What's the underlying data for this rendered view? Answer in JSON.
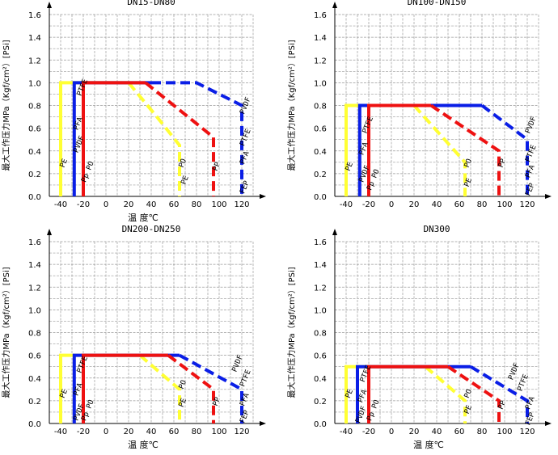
{
  "colors": {
    "PE": "#ffff33",
    "PVDF": "#0a1ee6",
    "PP": "#ee1111"
  },
  "chart_data": [
    {
      "type": "line",
      "title": "DN15-DN80",
      "xlabel": "温  度℃",
      "ylabel": "最大工作压力MPa（Kgf/cm²）[PSi]",
      "xlim": [
        -50,
        130
      ],
      "ylim": [
        0,
        1.6
      ],
      "xticks": [
        "-40",
        "-20",
        "0",
        "20",
        "40",
        "60",
        "80",
        "100",
        "120"
      ],
      "yticks": [
        "0.0",
        "0.2",
        "0.4",
        "0.6",
        "0.8",
        "1.0",
        "1.2",
        "1.4",
        "1.6"
      ],
      "series": [
        {
          "name": "PE",
          "color": "#ffff33",
          "solid": [
            [
              -40,
              0
            ],
            [
              -40,
              1.0
            ],
            [
              20,
              1.0
            ]
          ],
          "dashed": [
            [
              20,
              1.0
            ],
            [
              45,
              0.7
            ],
            [
              65,
              0.45
            ],
            [
              65,
              0
            ]
          ]
        },
        {
          "name": "PVDF",
          "color": "#0a1ee6",
          "solid": [
            [
              -28,
              0
            ],
            [
              -28,
              1.0
            ],
            [
              40,
              1.0
            ]
          ],
          "dashed": [
            [
              40,
              1.0
            ],
            [
              80,
              1.0
            ],
            [
              120,
              0.8
            ],
            [
              120,
              0
            ]
          ]
        },
        {
          "name": "PP",
          "color": "#ee1111",
          "solid": [
            [
              -20,
              0
            ],
            [
              -20,
              1.0
            ],
            [
              35,
              1.0
            ]
          ],
          "dashed": [
            [
              35,
              1.0
            ],
            [
              95,
              0.52
            ],
            [
              95,
              0
            ]
          ]
        }
      ],
      "annotations": [
        {
          "text": "PE",
          "x": -37,
          "y": 0.25
        },
        {
          "text": "PVDF",
          "x": -25,
          "y": 0.38
        },
        {
          "text": "PFA",
          "x": -25,
          "y": 0.58
        },
        {
          "text": "PTFE",
          "x": -22,
          "y": 0.88
        },
        {
          "text": "Pp PO",
          "x": -18,
          "y": 0.12
        },
        {
          "text": "PO",
          "x": 68,
          "y": 0.25
        },
        {
          "text": "PE",
          "x": 70,
          "y": 0.1
        },
        {
          "text": "PP",
          "x": 98,
          "y": 0.22
        },
        {
          "text": "PVDF",
          "x": 122,
          "y": 0.72
        },
        {
          "text": "PTFE",
          "x": 122,
          "y": 0.44
        },
        {
          "text": "PFA",
          "x": 122,
          "y": 0.28
        },
        {
          "text": "FEP",
          "x": 122,
          "y": 0.02
        }
      ]
    },
    {
      "type": "line",
      "title": "DN100-DN150",
      "xlabel": "",
      "ylabel": "最大工作压力MPa（Kgf/cm²）[PSi]",
      "xlim": [
        -50,
        130
      ],
      "ylim": [
        0,
        1.6
      ],
      "xticks": [
        "-40",
        "-20",
        "0",
        "20",
        "40",
        "60",
        "80",
        "100",
        "120"
      ],
      "yticks": [
        "0.0",
        "0.2",
        "0.4",
        "0.6",
        "0.8",
        "1.0",
        "1.2",
        "1.4",
        "1.6"
      ],
      "series": [
        {
          "name": "PE",
          "color": "#ffff33",
          "solid": [
            [
              -40,
              0
            ],
            [
              -40,
              0.8
            ],
            [
              20,
              0.8
            ]
          ],
          "dashed": [
            [
              20,
              0.8
            ],
            [
              65,
              0.3
            ],
            [
              65,
              0
            ]
          ]
        },
        {
          "name": "PVDF",
          "color": "#0a1ee6",
          "solid": [
            [
              -28,
              0
            ],
            [
              -28,
              0.8
            ],
            [
              80,
              0.8
            ]
          ],
          "dashed": [
            [
              80,
              0.8
            ],
            [
              120,
              0.5
            ],
            [
              120,
              0
            ]
          ]
        },
        {
          "name": "PP",
          "color": "#ee1111",
          "solid": [
            [
              -20,
              0
            ],
            [
              -20,
              0.8
            ],
            [
              35,
              0.8
            ]
          ],
          "dashed": [
            [
              35,
              0.8
            ],
            [
              95,
              0.4
            ],
            [
              95,
              0
            ]
          ]
        }
      ],
      "annotations": [
        {
          "text": "PE",
          "x": -37,
          "y": 0.22
        },
        {
          "text": "PVDF",
          "x": -25,
          "y": 0.12
        },
        {
          "text": "PFA",
          "x": -25,
          "y": 0.36
        },
        {
          "text": "PTFE",
          "x": -22,
          "y": 0.55
        },
        {
          "text": "Pp PO",
          "x": -18,
          "y": 0.05
        },
        {
          "text": "PO",
          "x": 68,
          "y": 0.25
        },
        {
          "text": "PE",
          "x": 68,
          "y": 0.08
        },
        {
          "text": "PP",
          "x": 98,
          "y": 0.25
        },
        {
          "text": "PVDF",
          "x": 122,
          "y": 0.55
        },
        {
          "text": "PTFE",
          "x": 122,
          "y": 0.3
        },
        {
          "text": "PFA",
          "x": 122,
          "y": 0.16
        },
        {
          "text": "FEP",
          "x": 122,
          "y": 0.0
        }
      ]
    },
    {
      "type": "line",
      "title": "DN200-DN250",
      "xlabel": "温  度℃",
      "ylabel": "最大工作压力MPa（Kgf/cm²）[PSi]",
      "xlim": [
        -50,
        130
      ],
      "ylim": [
        0,
        1.6
      ],
      "xticks": [
        "-40",
        "-20",
        "0",
        "20",
        "40",
        "60",
        "80",
        "100",
        "120"
      ],
      "yticks": [
        "0.0",
        "0.2",
        "0.4",
        "0.6",
        "0.8",
        "1.0",
        "1.2",
        "1.4",
        "1.6"
      ],
      "series": [
        {
          "name": "PE",
          "color": "#ffff33",
          "solid": [
            [
              -40,
              0
            ],
            [
              -40,
              0.6
            ],
            [
              30,
              0.6
            ]
          ],
          "dashed": [
            [
              30,
              0.6
            ],
            [
              65,
              0.3
            ],
            [
              65,
              0
            ]
          ]
        },
        {
          "name": "PVDF",
          "color": "#0a1ee6",
          "solid": [
            [
              -28,
              0
            ],
            [
              -28,
              0.6
            ],
            [
              65,
              0.6
            ]
          ],
          "dashed": [
            [
              65,
              0.6
            ],
            [
              120,
              0.3
            ],
            [
              120,
              0
            ]
          ]
        },
        {
          "name": "PP",
          "color": "#ee1111",
          "solid": [
            [
              -20,
              0
            ],
            [
              -20,
              0.6
            ],
            [
              55,
              0.6
            ]
          ],
          "dashed": [
            [
              55,
              0.6
            ],
            [
              95,
              0.3
            ],
            [
              95,
              0
            ]
          ]
        }
      ],
      "annotations": [
        {
          "text": "PE",
          "x": -37,
          "y": 0.22
        },
        {
          "text": "PVDF",
          "x": -25,
          "y": 0.02
        },
        {
          "text": "PFA",
          "x": -25,
          "y": 0.24
        },
        {
          "text": "PTFE",
          "x": -22,
          "y": 0.44
        },
        {
          "text": "Pp PO",
          "x": -18,
          "y": 0.02
        },
        {
          "text": "PO",
          "x": 68,
          "y": 0.3
        },
        {
          "text": "PE",
          "x": 68,
          "y": 0.14
        },
        {
          "text": "PP",
          "x": 98,
          "y": 0.15
        },
        {
          "text": "PVDF",
          "x": 115,
          "y": 0.45
        },
        {
          "text": "PTFE",
          "x": 122,
          "y": 0.32
        },
        {
          "text": "PFA",
          "x": 122,
          "y": 0.15
        },
        {
          "text": "FEP",
          "x": 122,
          "y": 0.0
        }
      ]
    },
    {
      "type": "line",
      "title": "DN300",
      "xlabel": "温  度℃",
      "ylabel": "最大工作压力MPa（Kgf/cm²）[PSi]",
      "xlim": [
        -50,
        130
      ],
      "ylim": [
        0,
        1.6
      ],
      "xticks": [
        "-40",
        "-20",
        "0",
        "20",
        "40",
        "60",
        "80",
        "100",
        "120"
      ],
      "yticks": [
        "0.0",
        "0.2",
        "0.4",
        "0.6",
        "0.8",
        "1.0",
        "1.2",
        "1.4",
        "1.6"
      ],
      "series": [
        {
          "name": "PE",
          "color": "#ffff33",
          "solid": [
            [
              -40,
              0
            ],
            [
              -40,
              0.5
            ],
            [
              30,
              0.5
            ]
          ],
          "dashed": [
            [
              30,
              0.5
            ],
            [
              65,
              0.2
            ],
            [
              65,
              0
            ]
          ]
        },
        {
          "name": "PVDF",
          "color": "#0a1ee6",
          "solid": [
            [
              -30,
              0
            ],
            [
              -30,
              0.5
            ],
            [
              70,
              0.5
            ]
          ],
          "dashed": [
            [
              70,
              0.5
            ],
            [
              120,
              0.2
            ],
            [
              120,
              0
            ]
          ]
        },
        {
          "name": "PP",
          "color": "#ee1111",
          "solid": [
            [
              -20,
              0
            ],
            [
              -20,
              0.5
            ],
            [
              50,
              0.5
            ]
          ],
          "dashed": [
            [
              50,
              0.5
            ],
            [
              95,
              0.2
            ],
            [
              95,
              0
            ]
          ]
        }
      ],
      "annotations": [
        {
          "text": "PE",
          "x": -37,
          "y": 0.22
        },
        {
          "text": "PVDF",
          "x": -28,
          "y": 0.0
        },
        {
          "text": "PFA",
          "x": -26,
          "y": 0.18
        },
        {
          "text": "PTFE",
          "x": -24,
          "y": 0.36
        },
        {
          "text": "Pp PO",
          "x": -18,
          "y": 0.02
        },
        {
          "text": "PO",
          "x": 68,
          "y": 0.22
        },
        {
          "text": "PE",
          "x": 68,
          "y": 0.08
        },
        {
          "text": "PP",
          "x": 98,
          "y": 0.12
        },
        {
          "text": "PVDF",
          "x": 107,
          "y": 0.38
        },
        {
          "text": "PTFE",
          "x": 115,
          "y": 0.28
        },
        {
          "text": "PFA",
          "x": 122,
          "y": 0.12
        },
        {
          "text": "FEP",
          "x": 122,
          "y": -0.02
        }
      ]
    }
  ]
}
